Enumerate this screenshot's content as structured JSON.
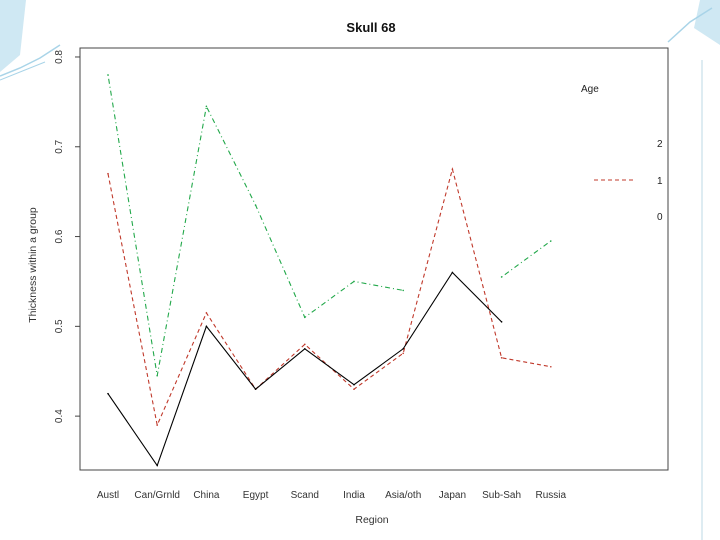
{
  "chart_data": {
    "type": "line",
    "title": "Skull 68",
    "xlabel": "Region",
    "ylabel": "Thickness within a group",
    "categories": [
      "Austl",
      "Can/Grnld",
      "China",
      "Egypt",
      "Scand",
      "India",
      "Asia/oth",
      "Japan",
      "Sub-Sah",
      "Russia"
    ],
    "y_ticks": [
      0.4,
      0.5,
      0.6,
      0.7,
      0.8
    ],
    "y_tick_labels": [
      "0.4",
      "0.5",
      "0.6",
      "0.7",
      "0.8"
    ],
    "ylim": [
      0.34,
      0.81
    ],
    "legend": {
      "title": "Age",
      "entries": [
        {
          "label": "2",
          "color": "#22a84a",
          "dash": "dotdash"
        },
        {
          "label": "1",
          "color": "#c0392b",
          "dash": "dashed"
        },
        {
          "label": "0",
          "color": "#000000",
          "dash": "solid"
        }
      ]
    },
    "series": [
      {
        "legend_label": "2",
        "color": "#22a84a",
        "dash": "dotdash",
        "values": [
          0.78,
          0.445,
          0.745,
          0.635,
          0.51,
          0.55,
          0.54,
          null,
          0.555,
          0.595
        ]
      },
      {
        "legend_label": "1",
        "color": "#c0392b",
        "dash": "dashed",
        "values": [
          0.67,
          0.39,
          0.515,
          0.43,
          0.48,
          0.43,
          0.47,
          0.675,
          0.465,
          0.455
        ]
      },
      {
        "legend_label": "0",
        "color": "#000000",
        "dash": "solid",
        "values": [
          0.425,
          0.345,
          0.5,
          0.43,
          0.475,
          0.435,
          0.475,
          0.56,
          0.505,
          null
        ]
      }
    ]
  }
}
